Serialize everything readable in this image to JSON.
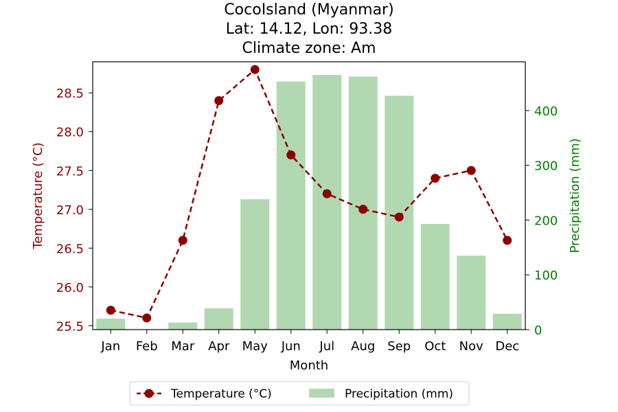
{
  "chart_data": {
    "type": "bar+line",
    "title_lines": [
      "CocoIsland (Myanmar)",
      "Lat: 14.12, Lon: 93.38",
      "Climate zone: Am"
    ],
    "xlabel": "Month",
    "categories": [
      "Jan",
      "Feb",
      "Mar",
      "Apr",
      "May",
      "Jun",
      "Jul",
      "Aug",
      "Sep",
      "Oct",
      "Nov",
      "Dec"
    ],
    "temperature": {
      "name": "Temperature (°C)",
      "axis_label": "Temperature (°C)",
      "values": [
        25.7,
        25.6,
        26.6,
        28.4,
        28.8,
        27.7,
        27.2,
        27.0,
        26.9,
        27.4,
        27.5,
        26.6
      ],
      "ylim": [
        25.45,
        28.9
      ],
      "ticks": [
        25.5,
        26.0,
        26.5,
        27.0,
        27.5,
        28.0,
        28.5
      ],
      "tick_labels": [
        "25.5",
        "26.0",
        "26.5",
        "27.0",
        "27.5",
        "28.0",
        "28.5"
      ],
      "color": "#8b0000"
    },
    "precipitation": {
      "name": "Precipitation (mm)",
      "axis_label": "Precipitation (mm)",
      "values": [
        20,
        0,
        13,
        39,
        238,
        453,
        465,
        462,
        427,
        193,
        135,
        29
      ],
      "ylim": [
        0,
        489
      ],
      "ticks": [
        0,
        100,
        200,
        300,
        400
      ],
      "tick_labels": [
        "0",
        "100",
        "200",
        "300",
        "400"
      ],
      "color": "#b2d8b2",
      "axis_color": "#008000"
    },
    "grid": false,
    "legend_position": "bottom-center"
  }
}
